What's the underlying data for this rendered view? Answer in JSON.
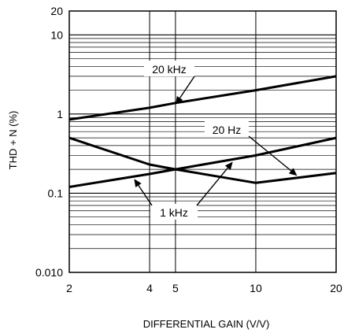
{
  "chart_data": {
    "type": "line",
    "title": "",
    "xlabel": "DIFFERENTIAL GAIN (V/V)",
    "ylabel": "THD + N (%)",
    "x_scale": "log",
    "y_scale": "log",
    "xlim": [
      2,
      20
    ],
    "ylim": [
      0.01,
      20
    ],
    "grid": true,
    "x_ticks": [
      {
        "value": 2,
        "label": "2"
      },
      {
        "value": 4,
        "label": "4"
      },
      {
        "value": 5,
        "label": "5"
      },
      {
        "value": 10,
        "label": "10"
      },
      {
        "value": 20,
        "label": "20"
      }
    ],
    "y_ticks": [
      {
        "value": 0.01,
        "label": "0.010"
      },
      {
        "value": 0.1,
        "label": "0.1"
      },
      {
        "value": 1,
        "label": "1"
      },
      {
        "value": 10,
        "label": "10"
      },
      {
        "value": 20,
        "label": "20"
      }
    ],
    "series": [
      {
        "name": "20 kHz",
        "x": [
          2,
          4,
          5,
          10,
          20
        ],
        "y": [
          0.85,
          1.2,
          1.38,
          2.0,
          3.0
        ]
      },
      {
        "name": "20 Hz",
        "x": [
          2,
          4,
          5,
          10,
          20
        ],
        "y": [
          0.5,
          0.23,
          0.2,
          0.135,
          0.18
        ]
      },
      {
        "name": "1 kHz",
        "x": [
          2,
          4,
          5,
          10,
          20
        ],
        "y": [
          0.12,
          0.175,
          0.2,
          0.3,
          0.5
        ]
      }
    ],
    "annotations": [
      {
        "text": "20 kHz",
        "target_series": 0,
        "target_x": 5
      },
      {
        "text": "20 Hz",
        "target_series": 1,
        "target_x": 14
      },
      {
        "text": "1 kHz",
        "targets": [
          {
            "series": 2,
            "x": 3.5
          },
          {
            "series": 2,
            "x": 8.2
          }
        ]
      }
    ]
  }
}
